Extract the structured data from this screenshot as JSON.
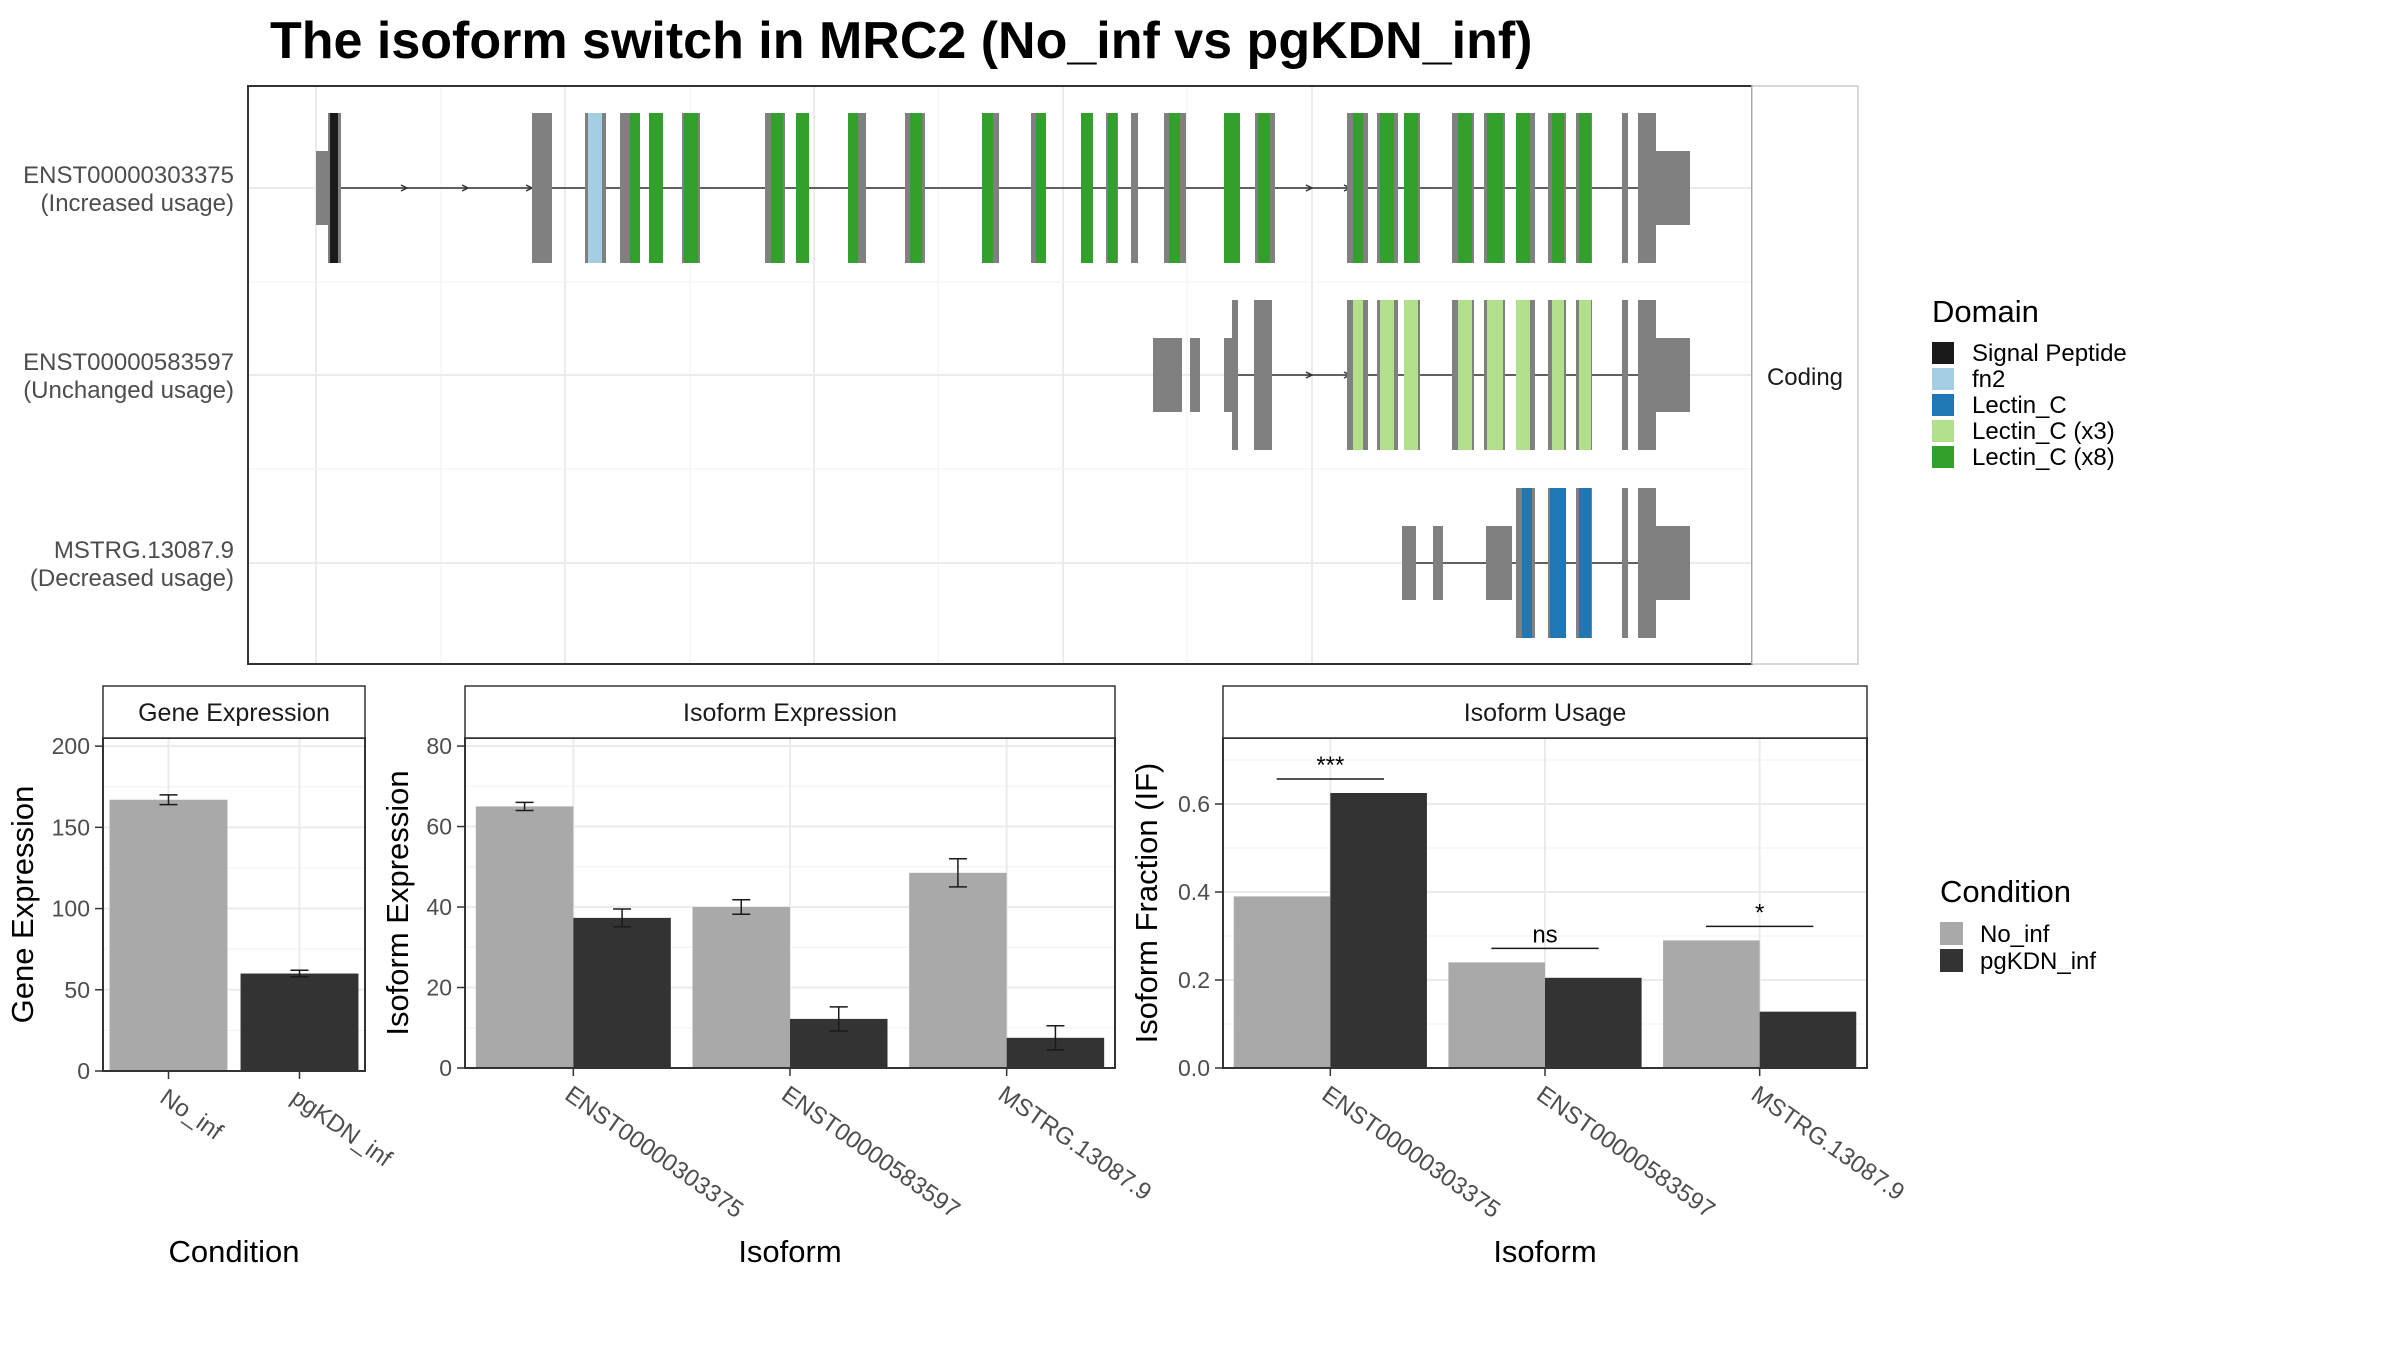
{
  "title": "The isoform switch in MRC2 (No_inf vs pgKDN_inf)",
  "colors": {
    "intron": "#333333",
    "exon": "#808080",
    "panel_border": "#333333",
    "grid_major": "#ebebeb",
    "grid_minor": "#f3f3f3",
    "strip_bg": "#ffffff",
    "no_inf": "#a9a9a9",
    "pgkdn_inf": "#333333"
  },
  "structure": {
    "strip_label": "Coding",
    "isoforms": [
      {
        "id": "ENST00000303375",
        "label_line1": "ENST00000303375",
        "label_line2": "(Increased usage)"
      },
      {
        "id": "ENST00000583597",
        "label_line1": "ENST00000583597",
        "label_line2": "(Unchanged usage)"
      },
      {
        "id": "MSTRG.13087.9",
        "label_line1": "MSTRG.13087.9",
        "label_line2": "(Decreased usage)"
      }
    ],
    "domain_legend": {
      "title": "Domain",
      "entries": [
        {
          "name": "Signal Peptide",
          "color": "#1a1a1a"
        },
        {
          "name": "fn2",
          "color": "#a6cee3"
        },
        {
          "name": "Lectin_C",
          "color": "#1f78b4"
        },
        {
          "name": "Lectin_C (x3)",
          "color": "#b2df8a"
        },
        {
          "name": "Lectin_C (x8)",
          "color": "#33a02c"
        }
      ]
    }
  },
  "chart_data": [
    {
      "type": "bar",
      "title": "Gene Expression",
      "xlabel": "Condition",
      "ylabel": "Gene Expression",
      "categories": [
        "No_inf",
        "pgKDN_inf"
      ],
      "values": [
        167,
        60
      ],
      "errors": [
        3,
        2
      ],
      "ylim": [
        0,
        205
      ],
      "yticks": [
        0,
        50,
        100,
        150,
        200
      ]
    },
    {
      "type": "bar",
      "title": "Isoform Expression",
      "xlabel": "Isoform",
      "ylabel": "Isoform Expression",
      "categories": [
        "ENST00000303375",
        "ENST00000583597",
        "MSTRG.13087.9"
      ],
      "series": [
        {
          "name": "No_inf",
          "values": [
            65,
            40,
            48.5
          ],
          "errors": [
            1,
            1.8,
            3.5
          ]
        },
        {
          "name": "pgKDN_inf",
          "values": [
            37.3,
            12.2,
            7.5
          ],
          "errors": [
            2.2,
            3,
            3
          ]
        }
      ],
      "ylim": [
        0,
        82
      ],
      "yticks": [
        0,
        20,
        40,
        60,
        80
      ]
    },
    {
      "type": "bar",
      "title": "Isoform Usage",
      "xlabel": "Isoform",
      "ylabel": "Isoform Fraction (IF)",
      "categories": [
        "ENST00000303375",
        "ENST00000583597",
        "MSTRG.13087.9"
      ],
      "series": [
        {
          "name": "No_inf",
          "values": [
            0.39,
            0.24,
            0.29
          ]
        },
        {
          "name": "pgKDN_inf",
          "values": [
            0.625,
            0.205,
            0.128
          ]
        }
      ],
      "significance": [
        "***",
        "ns",
        "*"
      ],
      "ylim": [
        0,
        0.75
      ],
      "yticks": [
        0.0,
        0.2,
        0.4,
        0.6
      ]
    }
  ],
  "condition_legend": {
    "title": "Condition",
    "entries": [
      {
        "name": "No_inf",
        "color": "#a9a9a9"
      },
      {
        "name": "pgKDN_inf",
        "color": "#333333"
      }
    ]
  }
}
